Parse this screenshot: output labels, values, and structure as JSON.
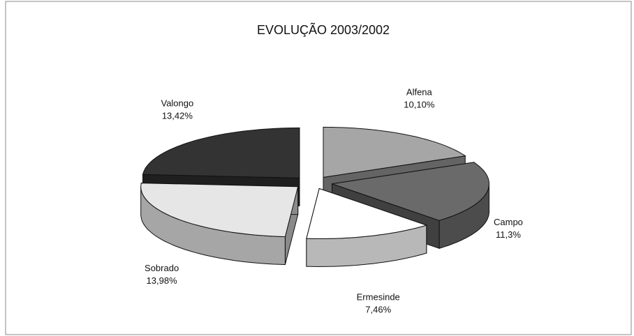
{
  "chart_data": {
    "type": "pie",
    "title": "EVOLUÇÃO 2003/2002",
    "categories": [
      "Alfena",
      "Campo",
      "Ermesinde",
      "Sobrado",
      "Valongo"
    ],
    "values": [
      10.1,
      11.3,
      7.46,
      13.98,
      13.42
    ],
    "value_labels": [
      "10,10%",
      "11,3%",
      "7,46%",
      "13,98%",
      "13,42%"
    ],
    "colors": [
      "#a6a6a6",
      "#6a6a6a",
      "#ffffff",
      "#e6e6e6",
      "#333333"
    ]
  }
}
